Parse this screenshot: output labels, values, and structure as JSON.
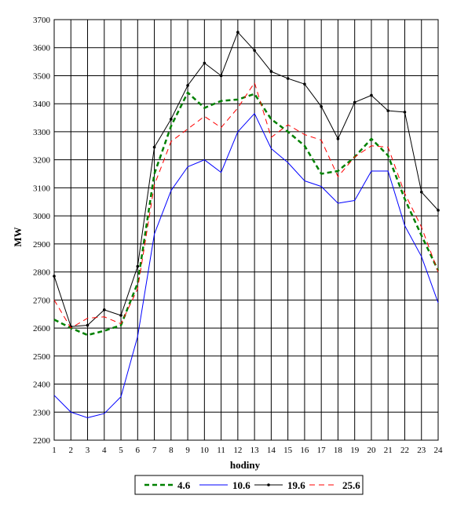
{
  "chart_data": {
    "type": "line",
    "title": "",
    "xlabel": "hodiny",
    "ylabel": "MW",
    "x": [
      1,
      2,
      3,
      4,
      5,
      6,
      7,
      8,
      9,
      10,
      11,
      12,
      13,
      14,
      15,
      16,
      17,
      18,
      19,
      20,
      21,
      22,
      23,
      24
    ],
    "ylim": [
      2200,
      3700
    ],
    "ytick_step": 100,
    "grid": true,
    "legend_position": "bottom-center",
    "series": [
      {
        "name": "4.6",
        "color": "#008000",
        "style": "dashed-thick",
        "values": [
          2630,
          2600,
          2575,
          2590,
          2610,
          2760,
          3150,
          3320,
          3440,
          3385,
          3410,
          3415,
          3435,
          3345,
          3300,
          3250,
          3150,
          3160,
          3210,
          3275,
          3215,
          3060,
          2930,
          2805
        ]
      },
      {
        "name": "10.6",
        "color": "#0000ff",
        "style": "solid",
        "values": [
          2360,
          2300,
          2280,
          2295,
          2355,
          2570,
          2935,
          3090,
          3175,
          3200,
          3155,
          3300,
          3365,
          3240,
          3190,
          3125,
          3105,
          3045,
          3055,
          3160,
          3160,
          2965,
          2855,
          2690
        ]
      },
      {
        "name": "19.6",
        "color": "#000000",
        "style": "solid-dots",
        "values": [
          2785,
          2605,
          2610,
          2665,
          2645,
          2820,
          3245,
          3345,
          3465,
          3545,
          3500,
          3655,
          3590,
          3515,
          3490,
          3470,
          3390,
          3275,
          3405,
          3430,
          3375,
          3370,
          3085,
          3020
        ]
      },
      {
        "name": "25.6",
        "color": "#ff0000",
        "style": "dashed",
        "values": [
          2700,
          2600,
          2635,
          2640,
          2615,
          2740,
          3110,
          3265,
          3310,
          3355,
          3315,
          3385,
          3475,
          3280,
          3325,
          3290,
          3270,
          3140,
          3210,
          3250,
          3245,
          3080,
          2960,
          2800
        ]
      }
    ]
  }
}
